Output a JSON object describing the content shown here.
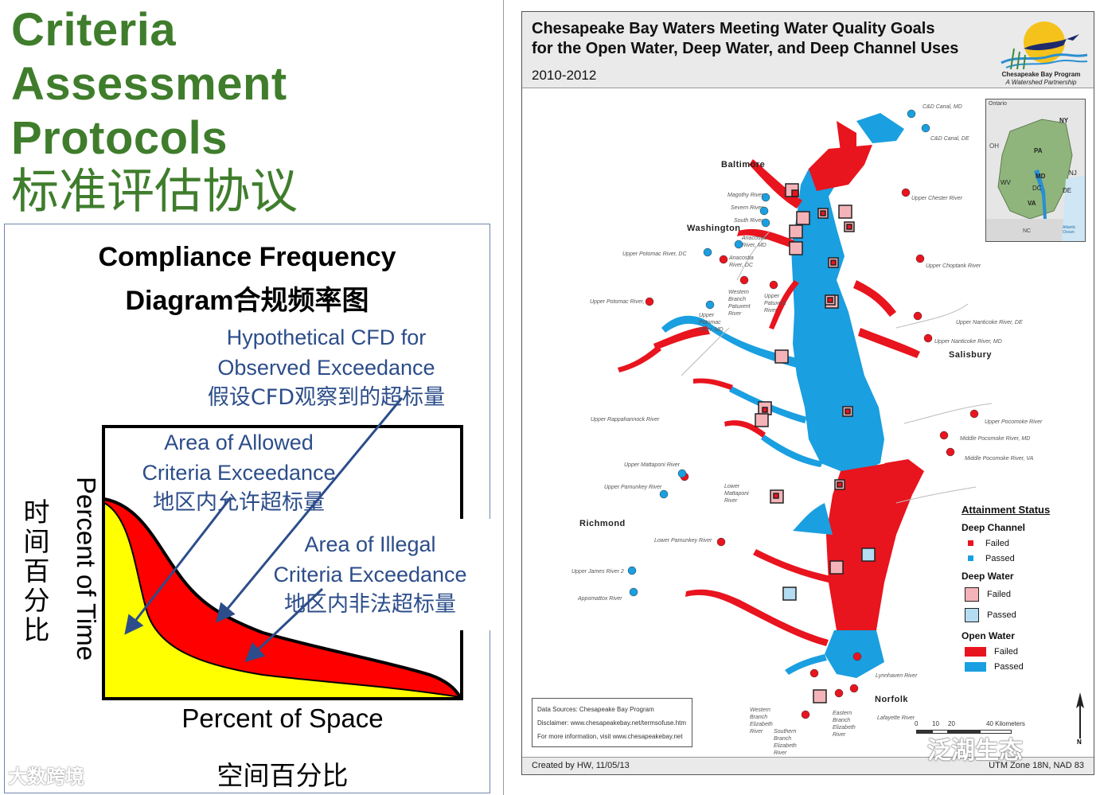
{
  "heading": {
    "line1": "Criteria",
    "line2": "Assessment",
    "line3": "Protocols",
    "cn": "标准评估协议"
  },
  "cfd": {
    "title_line1": "Compliance Frequency",
    "title_line2": "Diagram合规频率图",
    "hypothetical_en1": "Hypothetical CFD for",
    "hypothetical_en2": "Observed Exceedance",
    "hypothetical_cn": "假设CFD观察到的超标量",
    "allowed_en1": "Area of Allowed",
    "allowed_en2": "Criteria Exceedance",
    "allowed_cn": "地区内允许超标量",
    "illegal_en1": "Area of Illegal",
    "illegal_en2": "Criteria Exceedance",
    "illegal_cn": "地区内非法超标量",
    "y_label": "Percent of Time",
    "y_label_cn": "时间百分比",
    "x_label": "Percent of Space",
    "x_label_cn": "空间百分比",
    "colors": {
      "allowed": "#ffff00",
      "illegal": "#ff0000",
      "arrow": "#2c4d8a"
    }
  },
  "map": {
    "title_line1": "Chesapeake Bay Waters Meeting Water Quality Goals",
    "title_line2": "for the Open Water, Deep Water, and Deep Channel Uses",
    "years": "2010-2012",
    "logo_line1": "Chesapeake Bay Program",
    "logo_line2": "A Watershed Partnership",
    "cities": {
      "baltimore": "Baltimore",
      "washington": "Washington",
      "salisbury": "Salisbury",
      "richmond": "Richmond",
      "norfolk": "Norfolk"
    },
    "rivers": {
      "cd_md": "C&D Canal, MD",
      "cd_de": "C&D Canal, DE",
      "upper_chester": "Upper Chester River",
      "magothy": "Magothy River",
      "severn": "Severn River",
      "south": "South River",
      "anacostia_md": "Anacostia River, MD",
      "anacostia_dc": "Anacostia River, DC",
      "upper_potomac_dc": "Upper Potomac River, DC",
      "upper_choptank": "Upper Choptank River",
      "upper_potomac_va": "Upper Potomac River, VA",
      "western_patuxent": "Western Branch Patuxent River",
      "upper_patuxent": "Upper Patuxent River",
      "upper_potomac_md": "Upper Potomac River, MD",
      "upper_nanticoke_de": "Upper Nanticoke River, DE",
      "upper_nanticoke_md": "Upper Nanticoke River, MD",
      "upper_rappahannock": "Upper Rappahannock River",
      "upper_pocomoke": "Upper Pocomoke River",
      "middle_pocomoke_md": "Middle Pocomoke River, MD",
      "middle_pocomoke_va": "Middle Pocomoke River, VA",
      "upper_mattaponi": "Upper Mattaponi River",
      "upper_pamunkey": "Upper Pamunkey River",
      "lower_mattaponi": "Lower Mattaponi River",
      "lower_pamunkey": "Lower Pamunkey River",
      "upper_james": "Upper James River 2",
      "appomattox": "Appomattox River",
      "lynnhaven": "Lynnhaven River",
      "lafayette": "Lafayette River",
      "western_elizabeth": "Western Branch Elizabeth River",
      "eastern_elizabeth": "Eastern Branch Elizabeth River",
      "southern_elizabeth": "Southern Branch Elizabeth River"
    },
    "inset_labels": {
      "ontario": "Ontario",
      "ny": "NY",
      "pa": "PA",
      "oh": "OH",
      "nj": "NJ",
      "md": "MD",
      "de": "DE",
      "wv": "WV",
      "dc": "DC",
      "va": "VA",
      "nc": "NC",
      "ocean": "Atlantic Ocean"
    },
    "legend": {
      "heading": "Attainment Status",
      "deep_channel": "Deep Channel",
      "deep_water": "Deep Water",
      "open_water": "Open Water",
      "failed": "Failed",
      "passed": "Passed",
      "colors": {
        "failed": "#e8141e",
        "passed": "#1a9fe0",
        "failed_box": "#f4b3b8",
        "passed_box": "#b4dcf2"
      }
    },
    "sources": {
      "line1": "Data Sources:  Chesapeake Bay Program",
      "line2": "Disclaimer:  www.chesapeakebay.net/termsofuse.htm",
      "line3": "For more information, visit www.chesapeakebay.net"
    },
    "scale": {
      "t0": "0",
      "t10": "10",
      "t20": "20",
      "t40": "40 Kilometers",
      "north": "N"
    },
    "footer_left": "Created by HW, 11/05/13",
    "footer_right": "UTM Zone 18N, NAD 83"
  },
  "watermarks": {
    "left": "大数跨境",
    "right": "泛湖生态"
  }
}
